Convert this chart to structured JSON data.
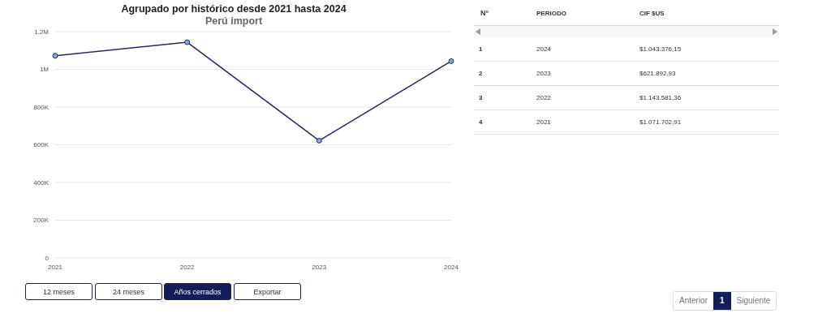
{
  "chart_data": {
    "type": "line",
    "title": "Agrupado por histórico desde 2021 hasta 2024",
    "subtitle": "Perú import",
    "categories": [
      "2021",
      "2022",
      "2023",
      "2024"
    ],
    "series": [
      {
        "color": "#2b2a5f",
        "values": [
          1071702.91,
          1143581.36,
          621892.93,
          1043376.15
        ]
      }
    ],
    "value_labels": [
      "$1.071.702,91",
      "$1.143.581,36",
      "$621.892,93",
      "$1.043.376,15"
    ],
    "ylim": [
      0,
      1200000
    ],
    "yticks": [
      0,
      {
        "value": 200000,
        "label": "200K"
      },
      {
        "value": 400000,
        "label": "400K"
      },
      {
        "value": 600000,
        "label": "600K"
      },
      {
        "value": 800000,
        "label": "800K"
      },
      {
        "value": 1000000,
        "label": "1M"
      },
      {
        "value": 1200000,
        "label": "1.2M"
      }
    ],
    "grid": "y",
    "marker": "circle",
    "line_style": "solid",
    "annotations": [
      "N°",
      "PERIODO",
      "CIF $US",
      "1",
      "2",
      "3",
      "4",
      "12 meses",
      "24 meses",
      "Años cerrados",
      "Exportar",
      "Anterior",
      "1",
      "Siguiente"
    ]
  }
}
